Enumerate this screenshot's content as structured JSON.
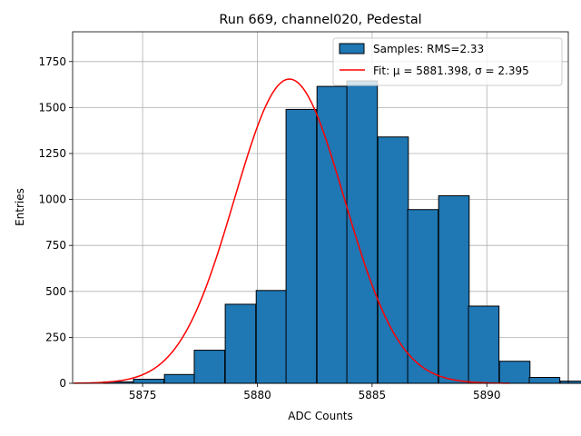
{
  "chart_data": {
    "type": "bar",
    "title": "Run 669, channel020, Pedestal",
    "xlabel": "ADC Counts",
    "ylabel": "Entries",
    "xlim": [
      5871.95,
      5893.55
    ],
    "ylim": [
      0,
      1912
    ],
    "xticks": [
      5875,
      5880,
      5885,
      5890
    ],
    "yticks": [
      0,
      250,
      500,
      750,
      1000,
      1250,
      1500,
      1750
    ],
    "grid": true,
    "legend_position": "top-right",
    "bin_width": 1.33,
    "bins": [
      {
        "start": 5873.3,
        "count": 8
      },
      {
        "start": 5874.6,
        "count": 22
      },
      {
        "start": 5875.95,
        "count": 48
      },
      {
        "start": 5877.25,
        "count": 180
      },
      {
        "start": 5878.6,
        "count": 430
      },
      {
        "start": 5879.95,
        "count": 505
      },
      {
        "start": 5881.25,
        "count": 1490
      },
      {
        "start": 5882.6,
        "count": 1615
      },
      {
        "start": 5883.9,
        "count": 1645
      },
      {
        "start": 5885.25,
        "count": 1340
      },
      {
        "start": 5886.55,
        "count": 945
      },
      {
        "start": 5887.9,
        "count": 1020
      },
      {
        "start": 5889.2,
        "count": 420
      },
      {
        "start": 5890.55,
        "count": 120
      },
      {
        "start": 5891.85,
        "count": 32
      },
      {
        "start": 5893.2,
        "count": 12
      }
    ],
    "series": [
      {
        "name": "Samples: RMS=2.33",
        "kind": "histogram",
        "color": "#1f77b4",
        "edge_color": "#000000"
      },
      {
        "name": "Fit: μ = 5881.398, σ = 2.395",
        "kind": "gaussian-fit",
        "color": "#ff0000",
        "mu": 5881.398,
        "sigma": 2.395,
        "amplitude": 1655,
        "x_range": [
          5872,
          5891
        ]
      }
    ]
  }
}
